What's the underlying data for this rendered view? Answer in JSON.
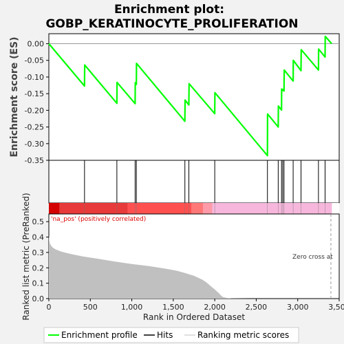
{
  "title_line1": "Enrichment plot:",
  "title_line2": "GOBP_KERATINOCYTE_PROLIFERATION",
  "colors": {
    "enrichment_line": "#00ff00",
    "hit_line": "#000000",
    "zero_line": "#999999",
    "metric_fill": "#c0c0c0",
    "pos_label": "#dd0000",
    "heat_pos_strong": "#d40000",
    "heat_pos": "#ff5050",
    "heat_neg": "#f7b7dc",
    "background": "#f2f2f2",
    "panel": "#ffffff"
  },
  "chart_data": [
    {
      "type": "line",
      "name": "enrichment-profile",
      "ylabel": "Enrichment score (ES)",
      "ylim": [
        -0.35,
        0.03
      ],
      "xlim": [
        0,
        3500
      ],
      "yticks": [
        0.0,
        -0.05,
        -0.1,
        -0.15,
        -0.2,
        -0.25,
        -0.3,
        -0.35
      ],
      "ytick_labels": [
        "0.00",
        "-0.05",
        "-0.10",
        "-0.15",
        "-0.20",
        "-0.25",
        "-0.30",
        "-0.35"
      ],
      "x": [
        0,
        430,
        432,
        820,
        822,
        1040,
        1042,
        1055,
        1057,
        1640,
        1642,
        1688,
        1690,
        2000,
        2002,
        2635,
        2637,
        2765,
        2767,
        2805,
        2807,
        2820,
        2822,
        2835,
        2837,
        2945,
        2947,
        3040,
        3042,
        3250,
        3252,
        3330,
        3332,
        3410
      ],
      "y": [
        0.0,
        -0.127,
        -0.064,
        -0.179,
        -0.116,
        -0.18,
        -0.117,
        -0.122,
        -0.059,
        -0.233,
        -0.169,
        -0.184,
        -0.12,
        -0.21,
        -0.147,
        -0.336,
        -0.211,
        -0.25,
        -0.187,
        -0.199,
        -0.136,
        -0.14,
        -0.138,
        -0.142,
        -0.079,
        -0.112,
        -0.05,
        -0.081,
        -0.018,
        -0.079,
        -0.016,
        -0.04,
        0.022,
        0.0
      ]
    },
    {
      "type": "bar",
      "name": "hits",
      "hit_positions": [
        430,
        820,
        1040,
        1055,
        1640,
        1688,
        2000,
        2635,
        2765,
        2805,
        2820,
        2835,
        2945,
        3040,
        3250,
        3330
      ]
    },
    {
      "type": "area",
      "name": "ranking-metric",
      "xlabel": "Rank in Ordered Dataset",
      "ylabel": "Ranked list metric (PreRanked)",
      "ylim": [
        0,
        0.55
      ],
      "xlim": [
        0,
        3500
      ],
      "yticks": [
        0.0,
        0.1,
        0.2,
        0.3,
        0.4,
        0.5
      ],
      "ytick_labels": [
        "0.0",
        "0.1",
        "0.2",
        "0.3",
        "0.4",
        "0.5"
      ],
      "xticks": [
        0,
        500,
        1000,
        1500,
        2000,
        2500,
        3000,
        3500
      ],
      "xtick_labels": [
        "0",
        "500",
        "1,000",
        "1,500",
        "2,000",
        "2,500",
        "3,000",
        "3,500"
      ],
      "x": [
        0,
        5,
        15,
        40,
        80,
        150,
        250,
        400,
        600,
        800,
        1000,
        1200,
        1400,
        1550,
        1650,
        1750,
        1850,
        1900,
        1950,
        2000,
        2050,
        2080,
        2100,
        2150,
        2200,
        2400,
        3000,
        3412
      ],
      "y": [
        0.41,
        0.38,
        0.355,
        0.335,
        0.32,
        0.305,
        0.292,
        0.275,
        0.258,
        0.24,
        0.225,
        0.212,
        0.195,
        0.18,
        0.165,
        0.148,
        0.123,
        0.105,
        0.082,
        0.06,
        0.035,
        0.018,
        0.01,
        0.004,
        0.001,
        0.0,
        0.0,
        0.0
      ],
      "annotation_pos": "'na_pos' (positively correlated)",
      "annotation_zero": "Zero cross at",
      "zero_cross_x": 3400
    }
  ],
  "legend": {
    "items": [
      {
        "label": "Enrichment profile"
      },
      {
        "label": "Hits"
      },
      {
        "label": "Ranking metric scores"
      }
    ]
  }
}
